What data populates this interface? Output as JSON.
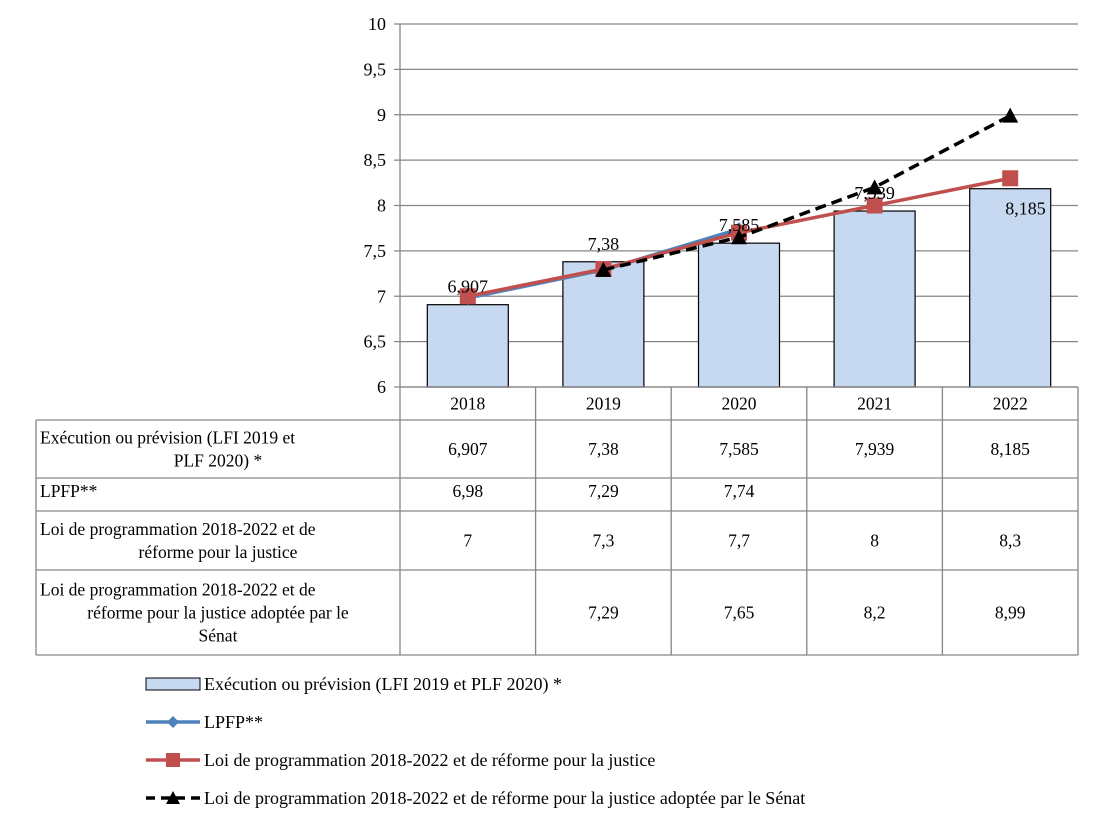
{
  "chart_data": {
    "type": "bar",
    "title": "",
    "xlabel": "",
    "ylabel": "",
    "categories": [
      "2018",
      "2019",
      "2020",
      "2021",
      "2022"
    ],
    "ylim": [
      6,
      10
    ],
    "yticks": [
      6,
      6.5,
      7,
      7.5,
      8,
      8.5,
      9,
      9.5,
      10
    ],
    "ytick_labels": [
      "6",
      "6,5",
      "7",
      "7,5",
      "8",
      "8,5",
      "9",
      "9,5",
      "10"
    ],
    "grid": true,
    "legend_position": "bottom",
    "series": [
      {
        "name": "Exécution ou prévision (LFI 2019 et PLF 2020) *",
        "table_label_lines": [
          "Exécution ou prévision (LFI 2019 et",
          "PLF 2020) *"
        ],
        "kind": "bar",
        "color": "#c6d9f1",
        "values": [
          6.907,
          7.38,
          7.585,
          7.939,
          8.185
        ],
        "labels": [
          "6,907",
          "7,38",
          "7,585",
          "7,939",
          "8,185"
        ],
        "data_labels_shown": true
      },
      {
        "name": "LPFP**",
        "table_label_lines": [
          "LPFP**"
        ],
        "kind": "line",
        "marker": "diamond",
        "color": "#4f81bd",
        "values": [
          6.98,
          7.29,
          7.74,
          null,
          null
        ],
        "labels": [
          "6,98",
          "7,29",
          "7,74",
          "",
          ""
        ]
      },
      {
        "name": "Loi de programmation 2018-2022 et de réforme pour la justice",
        "table_label_lines": [
          "Loi de programmation 2018-2022 et de",
          "réforme pour la justice"
        ],
        "kind": "line",
        "marker": "square",
        "color": "#c0504d",
        "values": [
          7,
          7.3,
          7.7,
          8,
          8.3
        ],
        "labels": [
          "7",
          "7,3",
          "7,7",
          "8",
          "8,3"
        ]
      },
      {
        "name": "Loi de programmation 2018-2022 et de réforme pour la justice adoptée par le Sénat",
        "table_label_lines": [
          "Loi de programmation 2018-2022 et de",
          "réforme pour la justice adoptée par le",
          "Sénat"
        ],
        "kind": "line",
        "dashed": true,
        "marker": "triangle",
        "color": "#000000",
        "values": [
          null,
          7.29,
          7.65,
          8.2,
          8.99
        ],
        "labels": [
          "",
          "7,29",
          "7,65",
          "8,2",
          "8,99"
        ]
      }
    ]
  }
}
